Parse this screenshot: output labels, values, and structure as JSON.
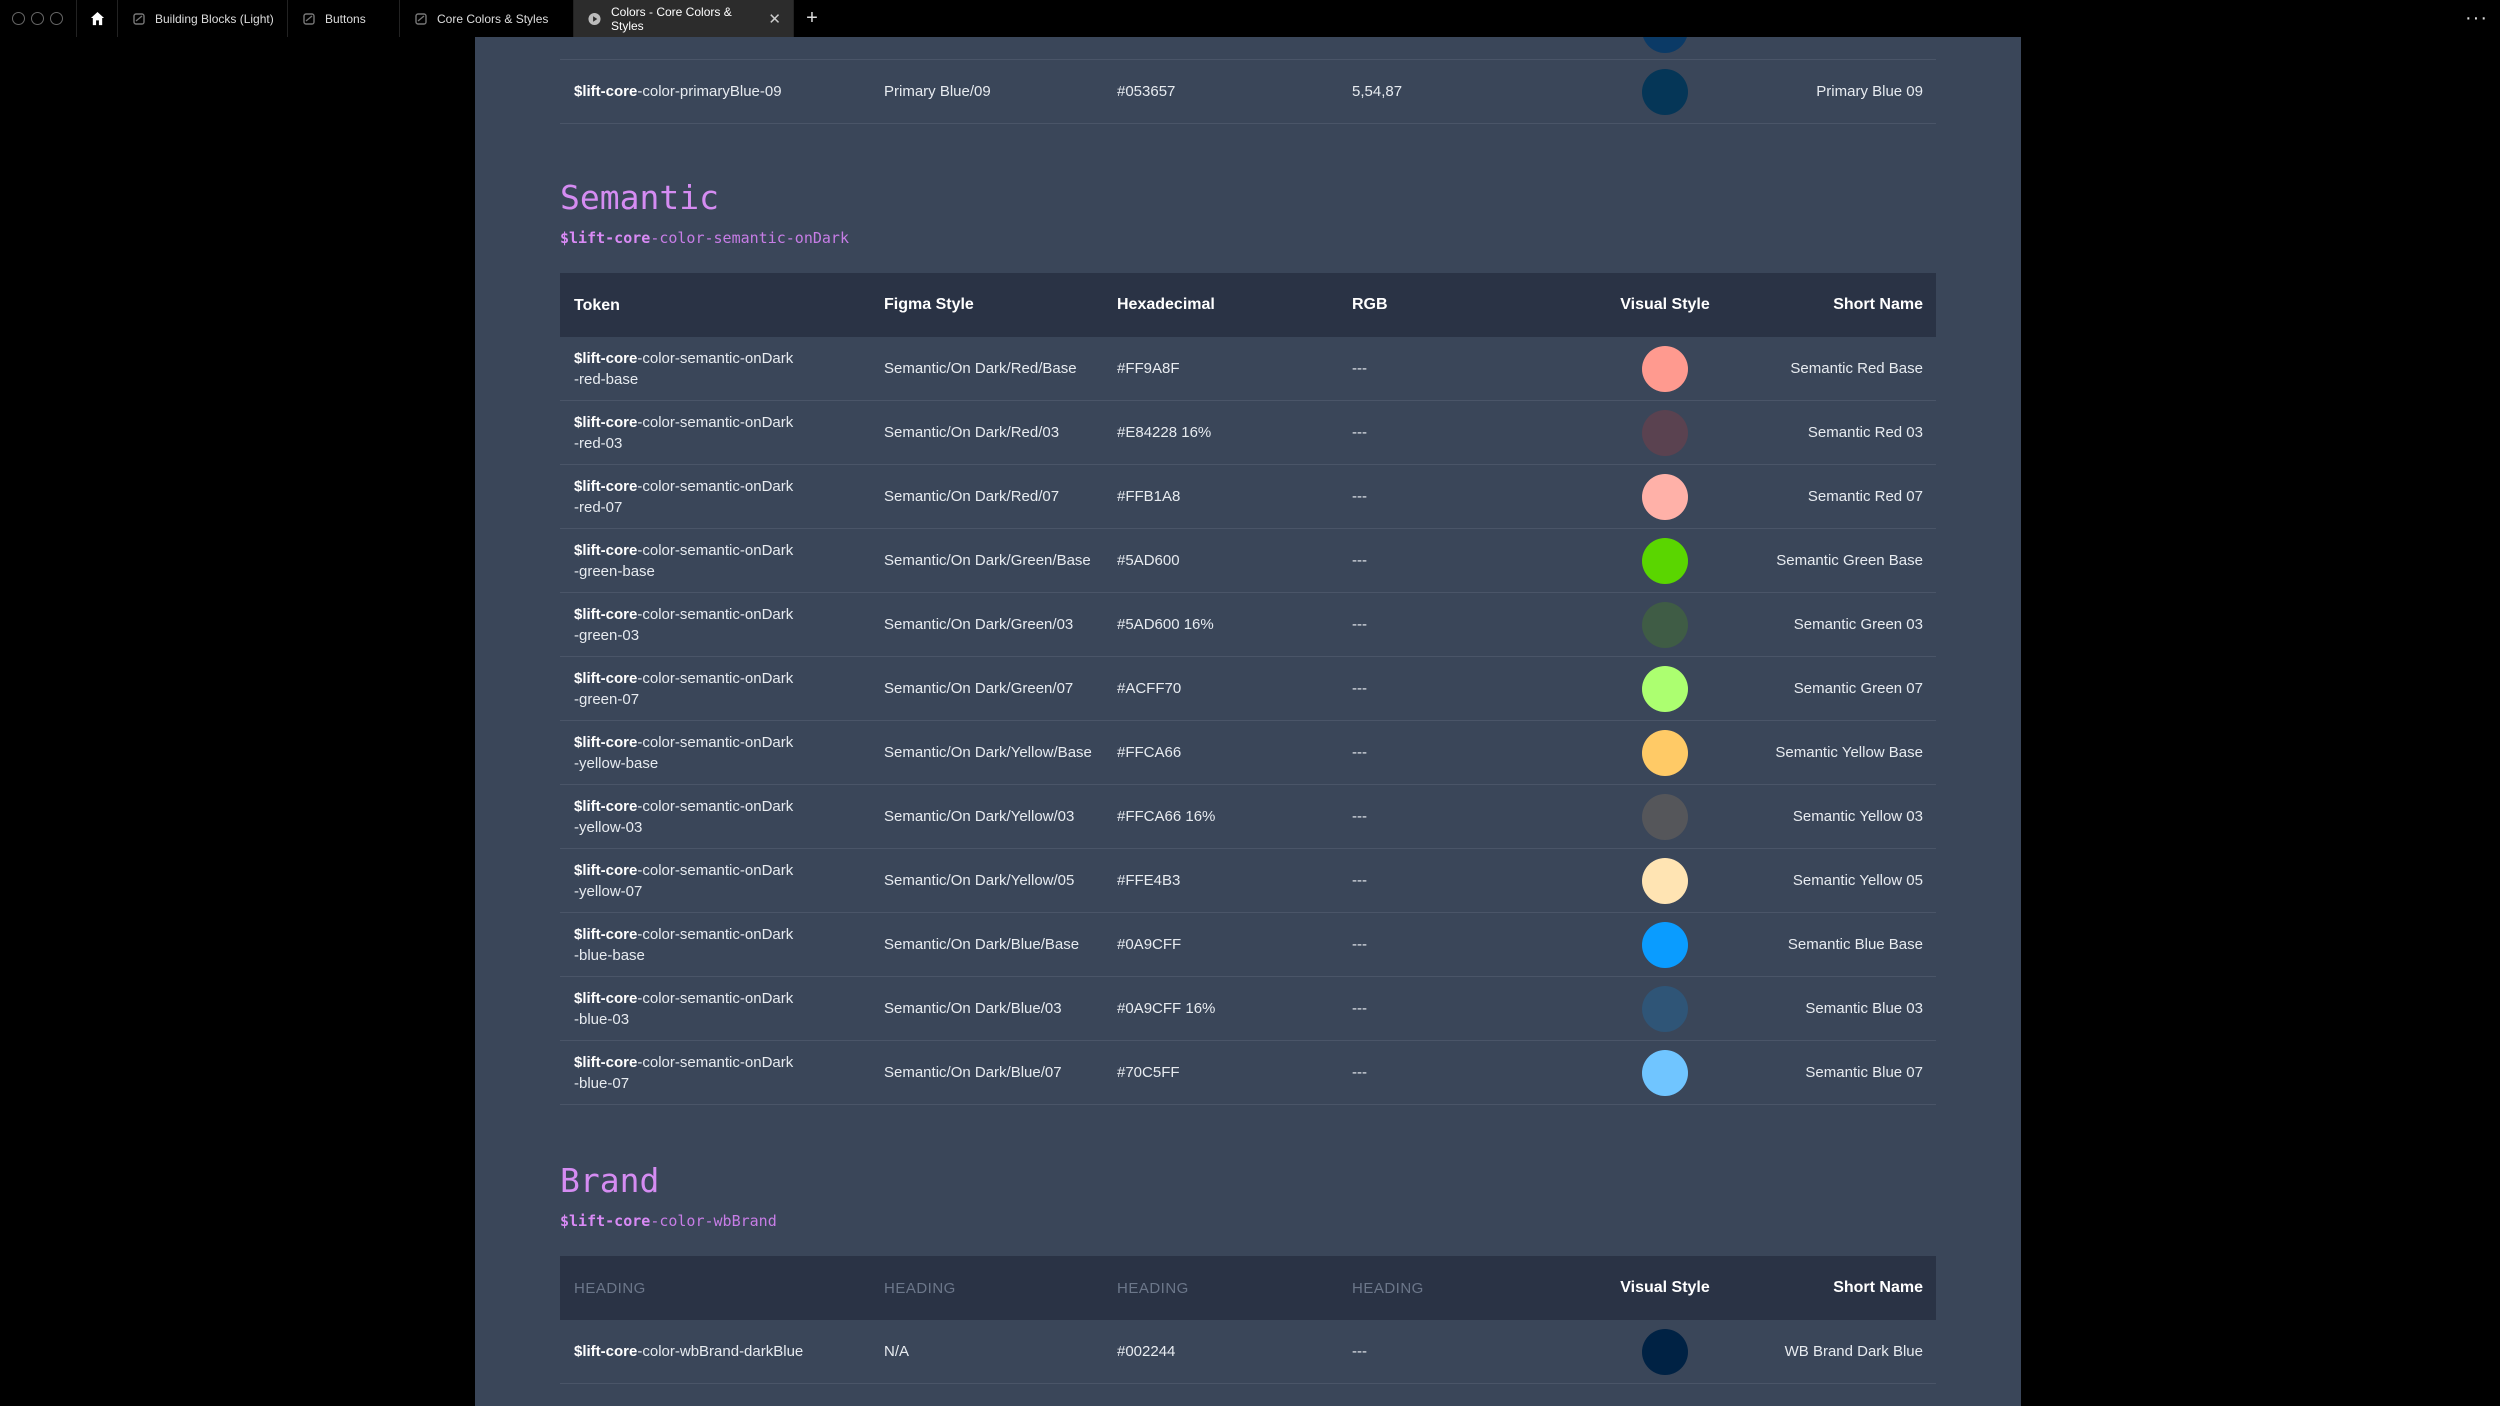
{
  "tabs": [
    {
      "label": "Building Blocks (Light)",
      "active": false
    },
    {
      "label": "Buttons",
      "active": false
    },
    {
      "label": "Core Colors & Styles",
      "active": false
    },
    {
      "label": "Colors - Core Colors & Styles",
      "active": true
    }
  ],
  "top_row": {
    "token_prefix": "$lift-core",
    "token_rest": "-color-primaryBlue-09",
    "figma": "Primary Blue/09",
    "hex": "#053657",
    "rgb": "5,54,87",
    "swatch": "#053657",
    "short": "Primary Blue 09"
  },
  "semantic": {
    "title": "Semantic",
    "sub_prefix": "$lift-core",
    "sub_rest": "-color-semantic-onDark",
    "headers": {
      "token": "Token",
      "figma": "Figma Style",
      "hex": "Hexadecimal",
      "rgb": "RGB",
      "visual": "Visual Style",
      "short": "Short Name"
    },
    "rows": [
      {
        "prefix": "$lift-core",
        "line1": "-color-semantic-onDark",
        "line2": "-red-base",
        "figma": "Semantic/On Dark/Red/Base",
        "hex": "#FF9A8F",
        "rgb": "---",
        "swatch": "#FF9A8F",
        "short": "Semantic Red Base"
      },
      {
        "prefix": "$lift-core",
        "line1": "-color-semantic-onDark",
        "line2": "-red-03",
        "figma": "Semantic/On Dark/Red/03",
        "hex": "#E84228 16%",
        "rgb": "---",
        "swatch": "#5a4250",
        "short": "Semantic Red 03"
      },
      {
        "prefix": "$lift-core",
        "line1": "-color-semantic-onDark",
        "line2": "-red-07",
        "figma": "Semantic/On Dark/Red/07",
        "hex": "#FFB1A8",
        "rgb": "---",
        "swatch": "#FFB1A8",
        "short": "Semantic Red 07"
      },
      {
        "prefix": "$lift-core",
        "line1": "-color-semantic-onDark",
        "line2": "-green-base",
        "figma": "Semantic/On Dark/Green/Base",
        "hex": "#5AD600",
        "rgb": "---",
        "swatch": "#5AD600",
        "short": "Semantic Green Base"
      },
      {
        "prefix": "$lift-core",
        "line1": "-color-semantic-onDark",
        "line2": "-green-03",
        "figma": "Semantic/On Dark/Green/03",
        "hex": "#5AD600 16%",
        "rgb": "---",
        "swatch": "#3f5c45",
        "short": "Semantic Green 03"
      },
      {
        "prefix": "$lift-core",
        "line1": "-color-semantic-onDark",
        "line2": "-green-07",
        "figma": "Semantic/On Dark/Green/07",
        "hex": "#ACFF70",
        "rgb": "---",
        "swatch": "#ACFF70",
        "short": "Semantic Green 07"
      },
      {
        "prefix": "$lift-core",
        "line1": "-color-semantic-onDark",
        "line2": "-yellow-base",
        "figma": "Semantic/On Dark/Yellow/Base",
        "hex": "#FFCA66",
        "rgb": "---",
        "swatch": "#FFCA66",
        "short": "Semantic Yellow Base"
      },
      {
        "prefix": "$lift-core",
        "line1": "-color-semantic-onDark",
        "line2": "-yellow-03",
        "figma": "Semantic/On Dark/Yellow/03",
        "hex": "#FFCA66 16%",
        "rgb": "---",
        "swatch": "#55565a",
        "short": "Semantic Yellow 03"
      },
      {
        "prefix": "$lift-core",
        "line1": "-color-semantic-onDark",
        "line2": "-yellow-07",
        "figma": "Semantic/On Dark/Yellow/05",
        "hex": "#FFE4B3",
        "rgb": "---",
        "swatch": "#FFE4B3",
        "short": "Semantic Yellow 05"
      },
      {
        "prefix": "$lift-core",
        "line1": "-color-semantic-onDark",
        "line2": "-blue-base",
        "figma": "Semantic/On Dark/Blue/Base",
        "hex": "#0A9CFF",
        "rgb": "---",
        "swatch": "#0A9CFF",
        "short": "Semantic Blue Base"
      },
      {
        "prefix": "$lift-core",
        "line1": "-color-semantic-onDark",
        "line2": "-blue-03",
        "figma": "Semantic/On Dark/Blue/03",
        "hex": "#0A9CFF 16%",
        "rgb": "---",
        "swatch": "#2f5577",
        "short": "Semantic Blue 03"
      },
      {
        "prefix": "$lift-core",
        "line1": "-color-semantic-onDark",
        "line2": "-blue-07",
        "figma": "Semantic/On Dark/Blue/07",
        "hex": "#70C5FF",
        "rgb": "---",
        "swatch": "#70C5FF",
        "short": "Semantic Blue 07"
      }
    ]
  },
  "brand": {
    "title": "Brand",
    "sub_prefix": "$lift-core",
    "sub_rest": "-color-wbBrand",
    "headers": {
      "token": "HEADING",
      "figma": "HEADING",
      "hex": "HEADING",
      "rgb": "HEADING",
      "visual": "Visual Style",
      "short": "Short Name"
    },
    "rows": [
      {
        "prefix": "$lift-core",
        "rest": "-color-wbBrand-darkBlue",
        "figma": "N/A",
        "hex": "#002244",
        "rgb": "---",
        "swatch": "#002244",
        "short": "WB Brand Dark Blue"
      }
    ]
  }
}
